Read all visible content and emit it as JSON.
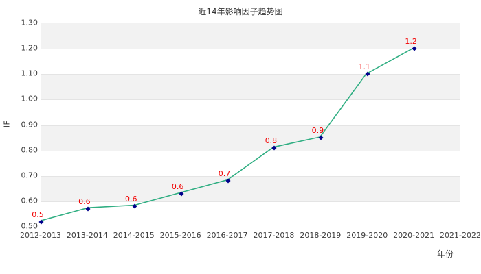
{
  "chart_data": {
    "type": "line",
    "title": "近14年影响因子趋势图",
    "xlabel": "年份",
    "ylabel": "IF",
    "categories": [
      "2012-2013",
      "2013-2014",
      "2014-2015",
      "2015-2016",
      "2016-2017",
      "2017-2018",
      "2018-2019",
      "2019-2020",
      "2020-2021",
      "2021-2022"
    ],
    "series": [
      {
        "name": "IF",
        "x": [
          "2012-2013",
          "2013-2014",
          "2014-2015",
          "2015-2016",
          "2016-2017",
          "2017-2018",
          "2018-2019",
          "2019-2020",
          "2020-2021"
        ],
        "values": [
          0.52,
          0.57,
          0.58,
          0.63,
          0.68,
          0.81,
          0.85,
          1.1,
          1.2
        ],
        "point_labels": [
          "0.5",
          "0.6",
          "0.6",
          "0.6",
          "0.7",
          "0.8",
          "0.9",
          "1.1",
          "1.2"
        ]
      }
    ],
    "ylim": [
      0.5,
      1.3
    ],
    "ytick_step": 0.1,
    "ytick_labels": [
      "0.50",
      "0.60",
      "0.70",
      "0.80",
      "0.90",
      "1.00",
      "1.10",
      "1.20",
      "1.30"
    ],
    "grid": "horizontal alternating bands, gray on top band",
    "legend": "none",
    "colors": {
      "line": "#2fae82",
      "marker": "#00008b",
      "point_label": "#f10000",
      "band_gray": "#f2f2f2",
      "band_white": "#ffffff",
      "plot_border": "#d9d9d9",
      "gridline": "#e4e4e4",
      "text": "#333333"
    }
  }
}
